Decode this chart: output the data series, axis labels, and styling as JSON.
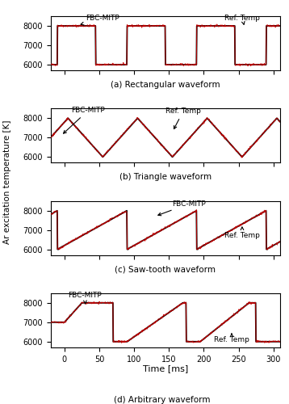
{
  "xlim": [
    -20,
    310
  ],
  "ylim": [
    5700,
    8500
  ],
  "yticks": [
    6000,
    7000,
    8000
  ],
  "xticks": [
    0,
    50,
    100,
    150,
    200,
    250,
    300
  ],
  "T_high": 8000,
  "T_low": 6000,
  "ref_color": "#000000",
  "fbc_color": "#cc0000",
  "ylabel": "Ar excitation temperature [K]",
  "xlabel": "Time [ms]",
  "subplot_labels": [
    "(a) Rectangular waveform",
    "(b) Triangle waveform",
    "(c) Saw-tooth waveform",
    "(d) Arbitrary waveform"
  ],
  "annotation_fbc": "FBC-MITP",
  "annotation_ref": "Ref. Temp",
  "figsize": [
    3.58,
    5.0
  ],
  "dpi": 100
}
